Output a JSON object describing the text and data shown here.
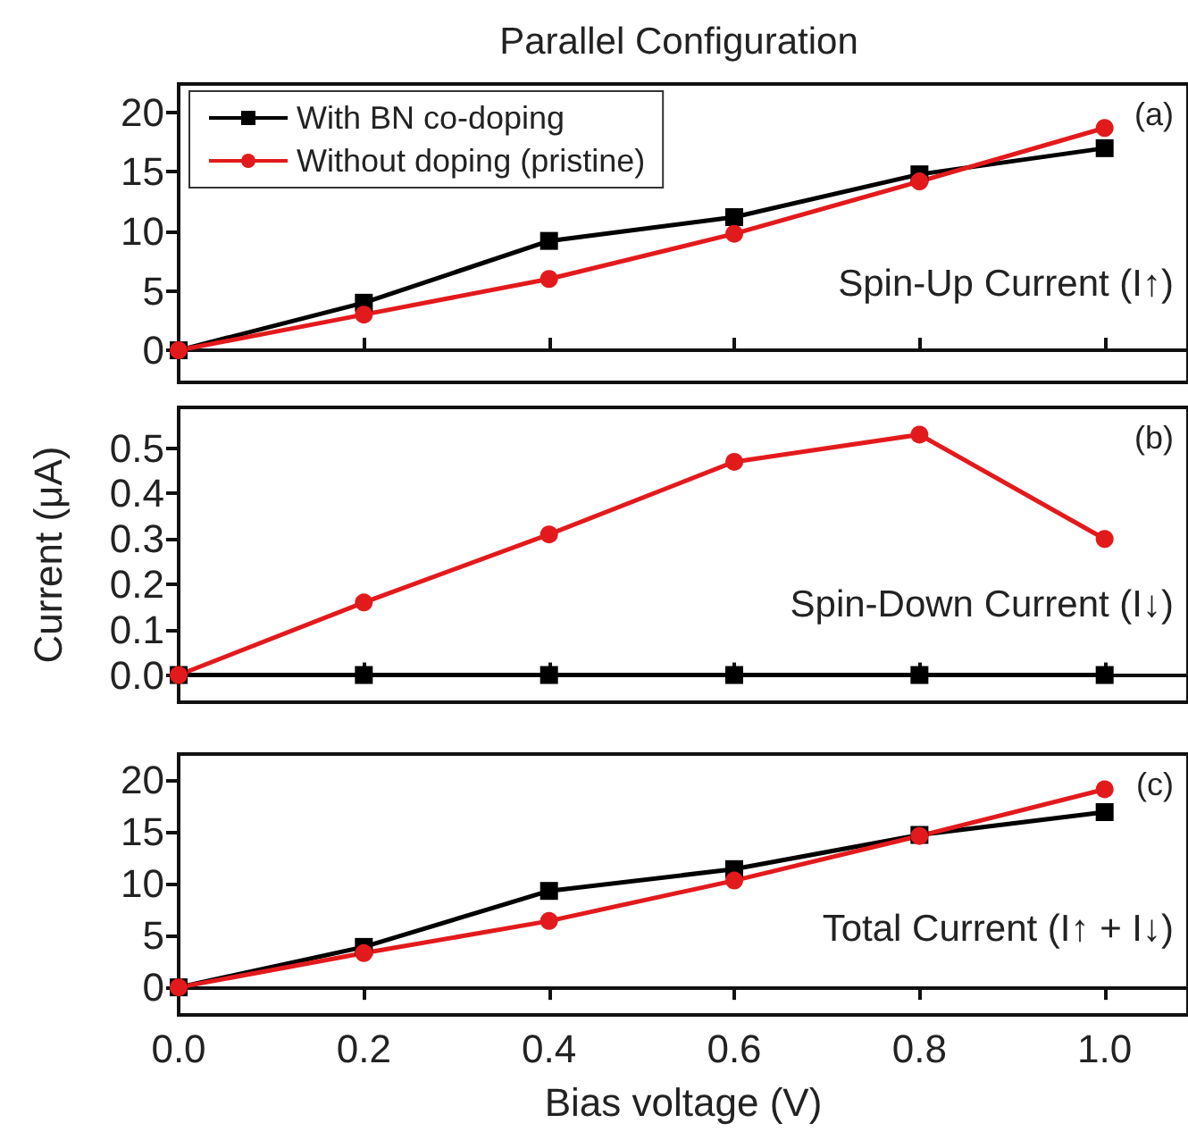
{
  "chart_data": [
    {
      "type": "line",
      "title": "Parallel Configuration",
      "x": [
        0,
        0.2,
        0.4,
        0.6,
        0.8,
        1.0
      ],
      "series": [
        {
          "name": "With BN co-doping",
          "color": "#000000",
          "marker": "square",
          "values": [
            0,
            4,
            9.2,
            11.2,
            14.8,
            17
          ]
        },
        {
          "name": "Without doping (pristine)",
          "color": "#e31a1c",
          "marker": "circle",
          "values": [
            0,
            3,
            6,
            9.8,
            14.2,
            18.7
          ]
        }
      ],
      "xlim": [
        0,
        1.09
      ],
      "xticks": [
        {
          "value": 0,
          "label": null
        },
        {
          "value": 0.2,
          "label": null
        },
        {
          "value": 0.4,
          "label": null
        },
        {
          "value": 0.6,
          "label": null
        },
        {
          "value": 0.8,
          "label": null
        },
        {
          "value": 1.0,
          "label": null
        }
      ],
      "ylim": [
        -2.7,
        22.4
      ],
      "yticks": [
        0,
        5,
        10,
        15,
        20
      ],
      "legend": "top left",
      "tick_labels": "y",
      "annotations": [
        "(a)",
        "Spin-Up Current (I↑)"
      ]
    },
    {
      "type": "line",
      "ylabel": "Current (μA)",
      "x": [
        0,
        0.2,
        0.4,
        0.6,
        0.8,
        1.0
      ],
      "series": [
        {
          "color": "#000000",
          "marker": "square",
          "values": [
            0,
            0,
            0,
            0,
            0,
            0
          ]
        },
        {
          "color": "#e31a1c",
          "marker": "circle",
          "values": [
            0,
            0.16,
            0.31,
            0.47,
            0.53,
            0.3
          ]
        }
      ],
      "xlim": [
        0,
        1.09
      ],
      "xticks": [
        {
          "value": 0,
          "label": null
        },
        {
          "value": 0.2,
          "label": null
        },
        {
          "value": 0.4,
          "label": null
        },
        {
          "value": 0.6,
          "label": null
        },
        {
          "value": 0.8,
          "label": null
        },
        {
          "value": 1.0,
          "label": null
        }
      ],
      "ylim": [
        -0.06,
        0.59
      ],
      "yticks": [
        {
          "value": 0,
          "label": "0.0"
        },
        {
          "value": 0.1,
          "label": "0.1"
        },
        {
          "value": 0.2,
          "label": "0.2"
        },
        {
          "value": 0.3,
          "label": "0.3"
        },
        {
          "value": 0.4,
          "label": "0.4"
        },
        {
          "value": 0.5,
          "label": "0.5"
        }
      ],
      "tick_labels": "y",
      "annotations": [
        "(b)",
        "Spin-Down Current (I↓)"
      ]
    },
    {
      "type": "line",
      "xlabel": "Bias voltage (V)",
      "x": [
        0,
        0.2,
        0.4,
        0.6,
        0.8,
        1.0
      ],
      "series": [
        {
          "color": "#000000",
          "marker": "square",
          "values": [
            0,
            3.9,
            9.3,
            11.4,
            14.7,
            16.9
          ]
        },
        {
          "color": "#e31a1c",
          "marker": "circle",
          "values": [
            0,
            3.3,
            6.4,
            10.3,
            14.6,
            19.1
          ]
        }
      ],
      "xlim": [
        0,
        1.09
      ],
      "xticks": [
        {
          "value": 0,
          "label": "0.0"
        },
        {
          "value": 0.2,
          "label": "0.2"
        },
        {
          "value": 0.4,
          "label": "0.4"
        },
        {
          "value": 0.6,
          "label": "0.6"
        },
        {
          "value": 0.8,
          "label": "0.8"
        },
        {
          "value": 1.0,
          "label": "1.0"
        }
      ],
      "ylim": [
        -2.66,
        22.5
      ],
      "yticks": [
        0,
        5,
        10,
        15,
        20
      ],
      "annotations": [
        "(c)",
        "Total Current (I↑ + I↓)"
      ]
    }
  ]
}
